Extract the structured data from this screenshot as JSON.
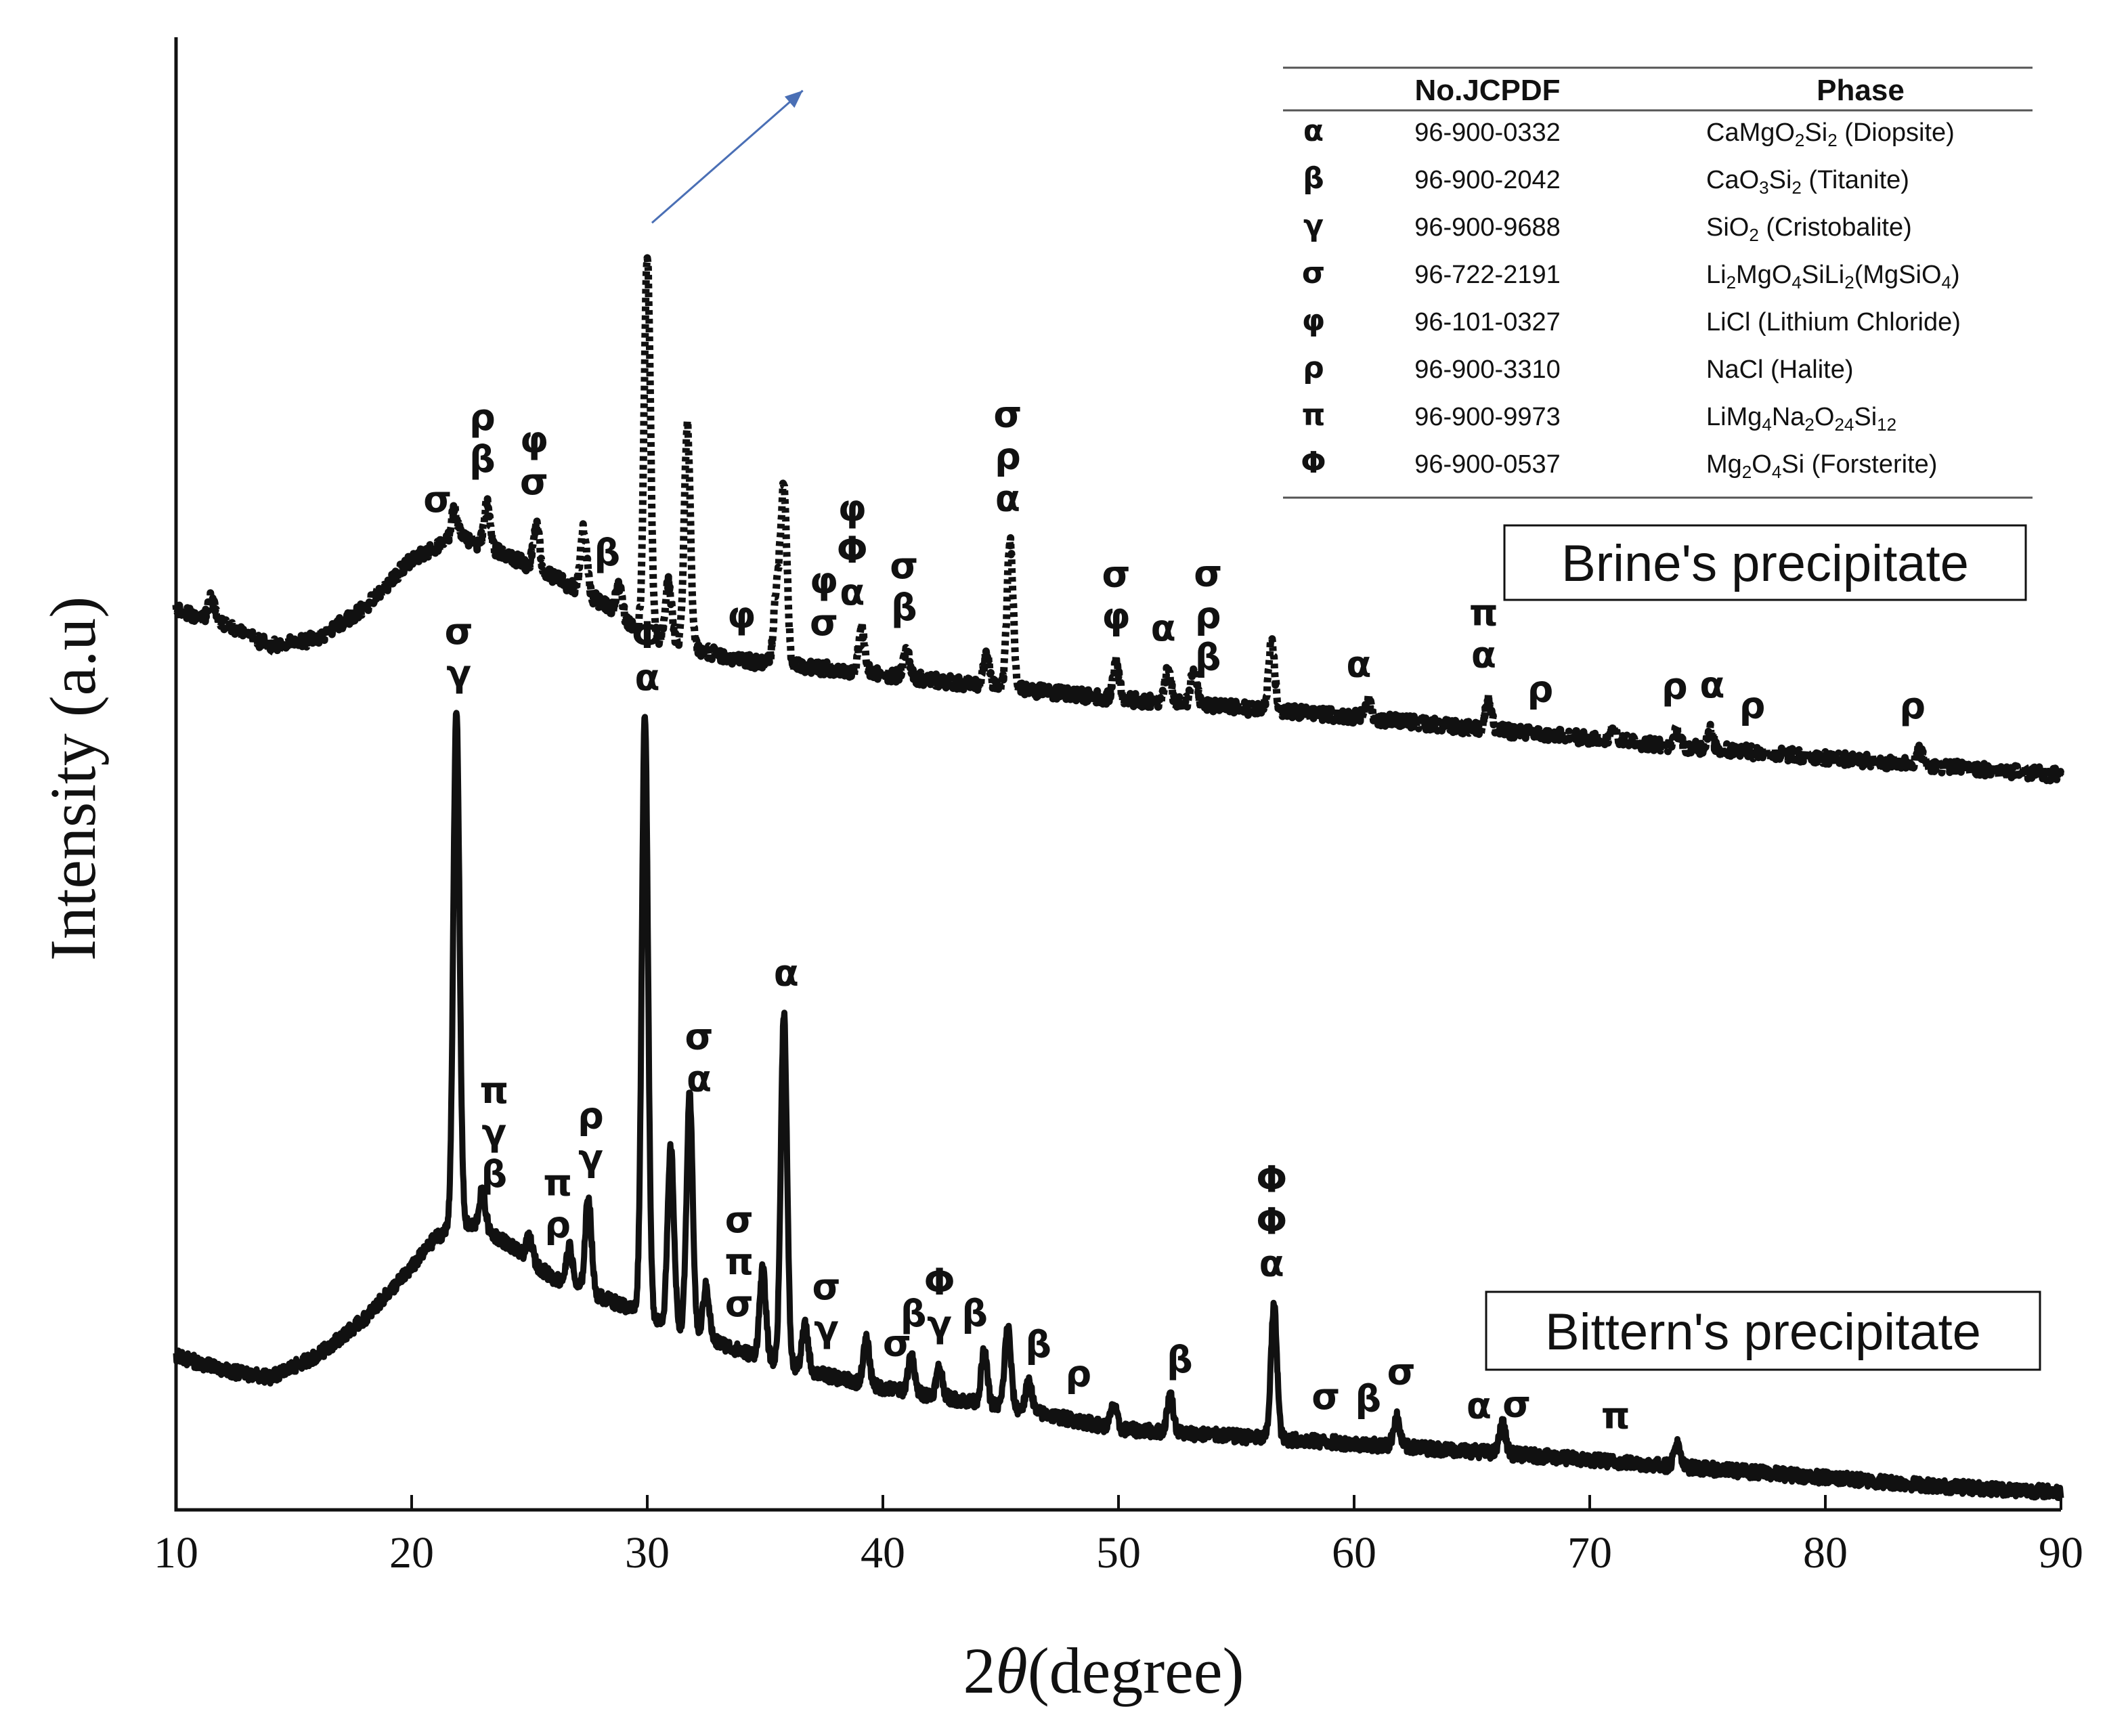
{
  "chart_data": {
    "type": "line",
    "title": "",
    "xlabel_prefix": "2",
    "xlabel_theta": "θ",
    "xlabel_suffix": "(degree)",
    "ylabel": "Intensity (a.u)",
    "xlim": [
      10,
      90
    ],
    "ylim": [
      0,
      100
    ],
    "grid": false,
    "x_ticks": [
      "10",
      "20",
      "30",
      "40",
      "50",
      "60",
      "70",
      "80",
      "90"
    ],
    "y_ticks": [],
    "series": [
      {
        "name": "Brine's precipitate",
        "style": "dotted",
        "color": "#111111",
        "baseline": [
          [
            10,
            61.2
          ],
          [
            12,
            60.3
          ],
          [
            14,
            58.8
          ],
          [
            16,
            59.3
          ],
          [
            18,
            61.4
          ],
          [
            20,
            64.7
          ],
          [
            22,
            66.2
          ],
          [
            24,
            65.0
          ],
          [
            26,
            63.5
          ],
          [
            28,
            61.8
          ],
          [
            30,
            59.5
          ],
          [
            34,
            57.8
          ],
          [
            38,
            57.2
          ],
          [
            42,
            56.5
          ],
          [
            46,
            55.8
          ],
          [
            50,
            55.2
          ],
          [
            55,
            54.6
          ],
          [
            60,
            54.0
          ],
          [
            65,
            53.2
          ],
          [
            70,
            52.5
          ],
          [
            75,
            51.8
          ],
          [
            80,
            51.2
          ],
          [
            85,
            50.6
          ],
          [
            90,
            50.0
          ]
        ],
        "peaks": [
          [
            11.5,
            1.5
          ],
          [
            21.8,
            2.0
          ],
          [
            23.2,
            3.0
          ],
          [
            25.3,
            3.0
          ],
          [
            27.3,
            4.5
          ],
          [
            28.8,
            2.0
          ],
          [
            30.0,
            26.0
          ],
          [
            30.9,
            4.0
          ],
          [
            31.7,
            15.0
          ],
          [
            35.5,
            5.0
          ],
          [
            35.8,
            12.0
          ],
          [
            39.1,
            3.0
          ],
          [
            41.0,
            1.8
          ],
          [
            44.4,
            2.0
          ],
          [
            45.4,
            10.0
          ],
          [
            49.9,
            2.5
          ],
          [
            52.1,
            2.2
          ],
          [
            53.2,
            2.5
          ],
          [
            56.5,
            4.5
          ],
          [
            60.6,
            1.2
          ],
          [
            65.7,
            2.0
          ],
          [
            71.0,
            1.0
          ],
          [
            73.7,
            1.0
          ],
          [
            75.1,
            1.3
          ],
          [
            84.0,
            1.0
          ]
        ],
        "peak_labels": [
          {
            "x": 21.1,
            "labels": [
              "σ"
            ]
          },
          {
            "x": 23.0,
            "labels": [
              "ρ",
              "β"
            ]
          },
          {
            "x": 25.2,
            "labels": [
              "φ",
              "σ"
            ]
          },
          {
            "x": 28.3,
            "labels": [
              "β"
            ]
          },
          {
            "x": 34.0,
            "labels": [
              "φ"
            ]
          },
          {
            "x": 37.5,
            "labels": [
              "φ",
              "σ"
            ]
          },
          {
            "x": 38.7,
            "labels": [
              "φ",
              "Φ",
              "α"
            ]
          },
          {
            "x": 40.9,
            "labels": [
              "σ",
              "β"
            ]
          },
          {
            "x": 45.3,
            "labels": [
              "σ",
              "ρ",
              "α"
            ]
          },
          {
            "x": 49.9,
            "labels": [
              "σ",
              "φ"
            ]
          },
          {
            "x": 51.9,
            "labels": [
              "α"
            ]
          },
          {
            "x": 53.8,
            "labels": [
              "σ",
              "ρ",
              "β"
            ]
          },
          {
            "x": 60.2,
            "labels": [
              "α"
            ]
          },
          {
            "x": 65.5,
            "labels": [
              "π",
              "α"
            ]
          },
          {
            "x": 67.9,
            "labels": [
              "ρ"
            ]
          },
          {
            "x": 73.6,
            "labels": [
              "ρ"
            ]
          },
          {
            "x": 75.2,
            "labels": [
              "α"
            ]
          },
          {
            "x": 76.9,
            "labels": [
              "ρ"
            ]
          },
          {
            "x": 83.7,
            "labels": [
              "ρ"
            ]
          }
        ]
      },
      {
        "name": "Bittern's precipitate",
        "style": "solid",
        "color": "#111111",
        "baseline": [
          [
            10,
            10.5
          ],
          [
            12,
            9.5
          ],
          [
            14,
            9.0
          ],
          [
            16,
            10.5
          ],
          [
            18,
            13.0
          ],
          [
            20,
            16.5
          ],
          [
            21,
            18.5
          ],
          [
            22,
            19.5
          ],
          [
            23,
            19.2
          ],
          [
            24,
            18.2
          ],
          [
            25,
            17.0
          ],
          [
            26,
            15.8
          ],
          [
            28,
            14.5
          ],
          [
            30,
            13.3
          ],
          [
            32,
            12.0
          ],
          [
            34,
            10.8
          ],
          [
            36,
            9.8
          ],
          [
            38,
            9.0
          ],
          [
            40,
            8.3
          ],
          [
            42,
            7.8
          ],
          [
            44,
            7.3
          ],
          [
            46,
            6.8
          ],
          [
            50,
            5.5
          ],
          [
            55,
            5.0
          ],
          [
            60,
            4.5
          ],
          [
            65,
            4.0
          ],
          [
            70,
            3.4
          ],
          [
            75,
            2.8
          ],
          [
            80,
            2.2
          ],
          [
            85,
            1.6
          ],
          [
            90,
            1.2
          ]
        ],
        "peaks": [
          [
            21.9,
            35.0
          ],
          [
            23.0,
            2.5
          ],
          [
            25.0,
            1.5
          ],
          [
            26.7,
            2.5
          ],
          [
            27.5,
            6.5
          ],
          [
            29.9,
            41.0
          ],
          [
            31.0,
            12.0
          ],
          [
            31.8,
            16.0
          ],
          [
            32.5,
            3.5
          ],
          [
            34.9,
            6.0
          ],
          [
            35.8,
            24.0
          ],
          [
            36.7,
            3.0
          ],
          [
            39.3,
            3.0
          ],
          [
            41.2,
            2.5
          ],
          [
            42.4,
            2.0
          ],
          [
            44.3,
            3.5
          ],
          [
            45.3,
            5.5
          ],
          [
            46.2,
            2.0
          ],
          [
            49.8,
            1.5
          ],
          [
            52.2,
            2.5
          ],
          [
            56.6,
            9.0
          ],
          [
            61.8,
            2.0
          ],
          [
            66.3,
            2.0
          ],
          [
            73.7,
            1.5
          ]
        ],
        "peak_labels": [
          {
            "x": 22.0,
            "labels": [
              "σ",
              "γ"
            ]
          },
          {
            "x": 23.5,
            "labels": [
              "π",
              "γ",
              "β"
            ]
          },
          {
            "x": 26.2,
            "labels": [
              "π",
              "ρ"
            ]
          },
          {
            "x": 27.6,
            "labels": [
              "ρ",
              "γ"
            ]
          },
          {
            "x": 30.0,
            "labels": [
              "Φ",
              "α"
            ]
          },
          {
            "x": 32.2,
            "labels": [
              "σ",
              "α"
            ]
          },
          {
            "x": 33.9,
            "labels": [
              "σ",
              "π",
              "σ"
            ]
          },
          {
            "x": 35.9,
            "labels": [
              "α"
            ]
          },
          {
            "x": 37.6,
            "labels": [
              "σ",
              "γ"
            ]
          },
          {
            "x": 40.6,
            "labels": [
              "σ"
            ]
          },
          {
            "x": 41.3,
            "labels": [
              "β"
            ]
          },
          {
            "x": 42.4,
            "labels": [
              "Φ",
              "γ"
            ]
          },
          {
            "x": 43.9,
            "labels": [
              "β"
            ]
          },
          {
            "x": 46.6,
            "labels": [
              "β"
            ]
          },
          {
            "x": 48.3,
            "labels": [
              "ρ"
            ]
          },
          {
            "x": 52.6,
            "labels": [
              "β"
            ]
          },
          {
            "x": 56.5,
            "labels": [
              "Φ",
              "Φ",
              "α"
            ]
          },
          {
            "x": 58.8,
            "labels": [
              "σ"
            ]
          },
          {
            "x": 60.6,
            "labels": [
              "β"
            ]
          },
          {
            "x": 62.0,
            "labels": [
              "σ"
            ]
          },
          {
            "x": 65.3,
            "labels": [
              "α"
            ]
          },
          {
            "x": 66.9,
            "labels": [
              "σ"
            ]
          },
          {
            "x": 71.1,
            "labels": [
              "π"
            ]
          }
        ]
      }
    ],
    "annotations": [
      {
        "type": "arrow",
        "color": "#4a6fb5",
        "from": [
          30.2,
          87.6
        ],
        "to": [
          36.6,
          96.6
        ]
      }
    ],
    "legend_table": {
      "headers": [
        "No.JCPDF",
        "Phase"
      ],
      "rows": [
        {
          "symbol": "α",
          "code": "96-900-0332",
          "phase": [
            [
              "CaMgO",
              ""
            ],
            [
              "2",
              "sub"
            ],
            [
              "Si",
              ""
            ],
            [
              "2",
              "sub"
            ],
            [
              " (Diopsite)",
              ""
            ]
          ]
        },
        {
          "symbol": "β",
          "code": "96-900-2042",
          "phase": [
            [
              "CaO",
              ""
            ],
            [
              "3",
              "sub"
            ],
            [
              "Si",
              ""
            ],
            [
              "2",
              "sub"
            ],
            [
              " (Titanite)",
              ""
            ]
          ]
        },
        {
          "symbol": "γ",
          "code": "96-900-9688",
          "phase": [
            [
              "SiO",
              ""
            ],
            [
              "2",
              "sub"
            ],
            [
              " (Cristobalite)",
              ""
            ]
          ]
        },
        {
          "symbol": "σ",
          "code": "96-722-2191",
          "phase": [
            [
              "Li",
              ""
            ],
            [
              "2",
              "sub"
            ],
            [
              "MgO",
              ""
            ],
            [
              "4",
              "sub"
            ],
            [
              "SiLi",
              ""
            ],
            [
              "2",
              "sub"
            ],
            [
              "(MgSiO",
              ""
            ],
            [
              "4",
              "sub"
            ],
            [
              ")",
              ""
            ]
          ]
        },
        {
          "symbol": "φ",
          "code": "96-101-0327",
          "phase": [
            [
              "LiCl (Lithium Chloride)",
              ""
            ]
          ]
        },
        {
          "symbol": "ρ",
          "code": "96-900-3310",
          "phase": [
            [
              "NaCl (Halite)",
              ""
            ]
          ]
        },
        {
          "symbol": "π",
          "code": "96-900-9973",
          "phase": [
            [
              "LiMg",
              ""
            ],
            [
              "4",
              "sub"
            ],
            [
              "Na",
              ""
            ],
            [
              "2",
              "sub"
            ],
            [
              "O",
              ""
            ],
            [
              "24",
              "sub"
            ],
            [
              "Si",
              ""
            ],
            [
              "12",
              "sub"
            ]
          ]
        },
        {
          "symbol": "Φ",
          "code": "96-900-0537",
          "phase": [
            [
              "Mg",
              ""
            ],
            [
              "2",
              "sub"
            ],
            [
              "O",
              ""
            ],
            [
              "4",
              "sub"
            ],
            [
              "Si (Forsterite)",
              ""
            ]
          ]
        }
      ]
    }
  }
}
